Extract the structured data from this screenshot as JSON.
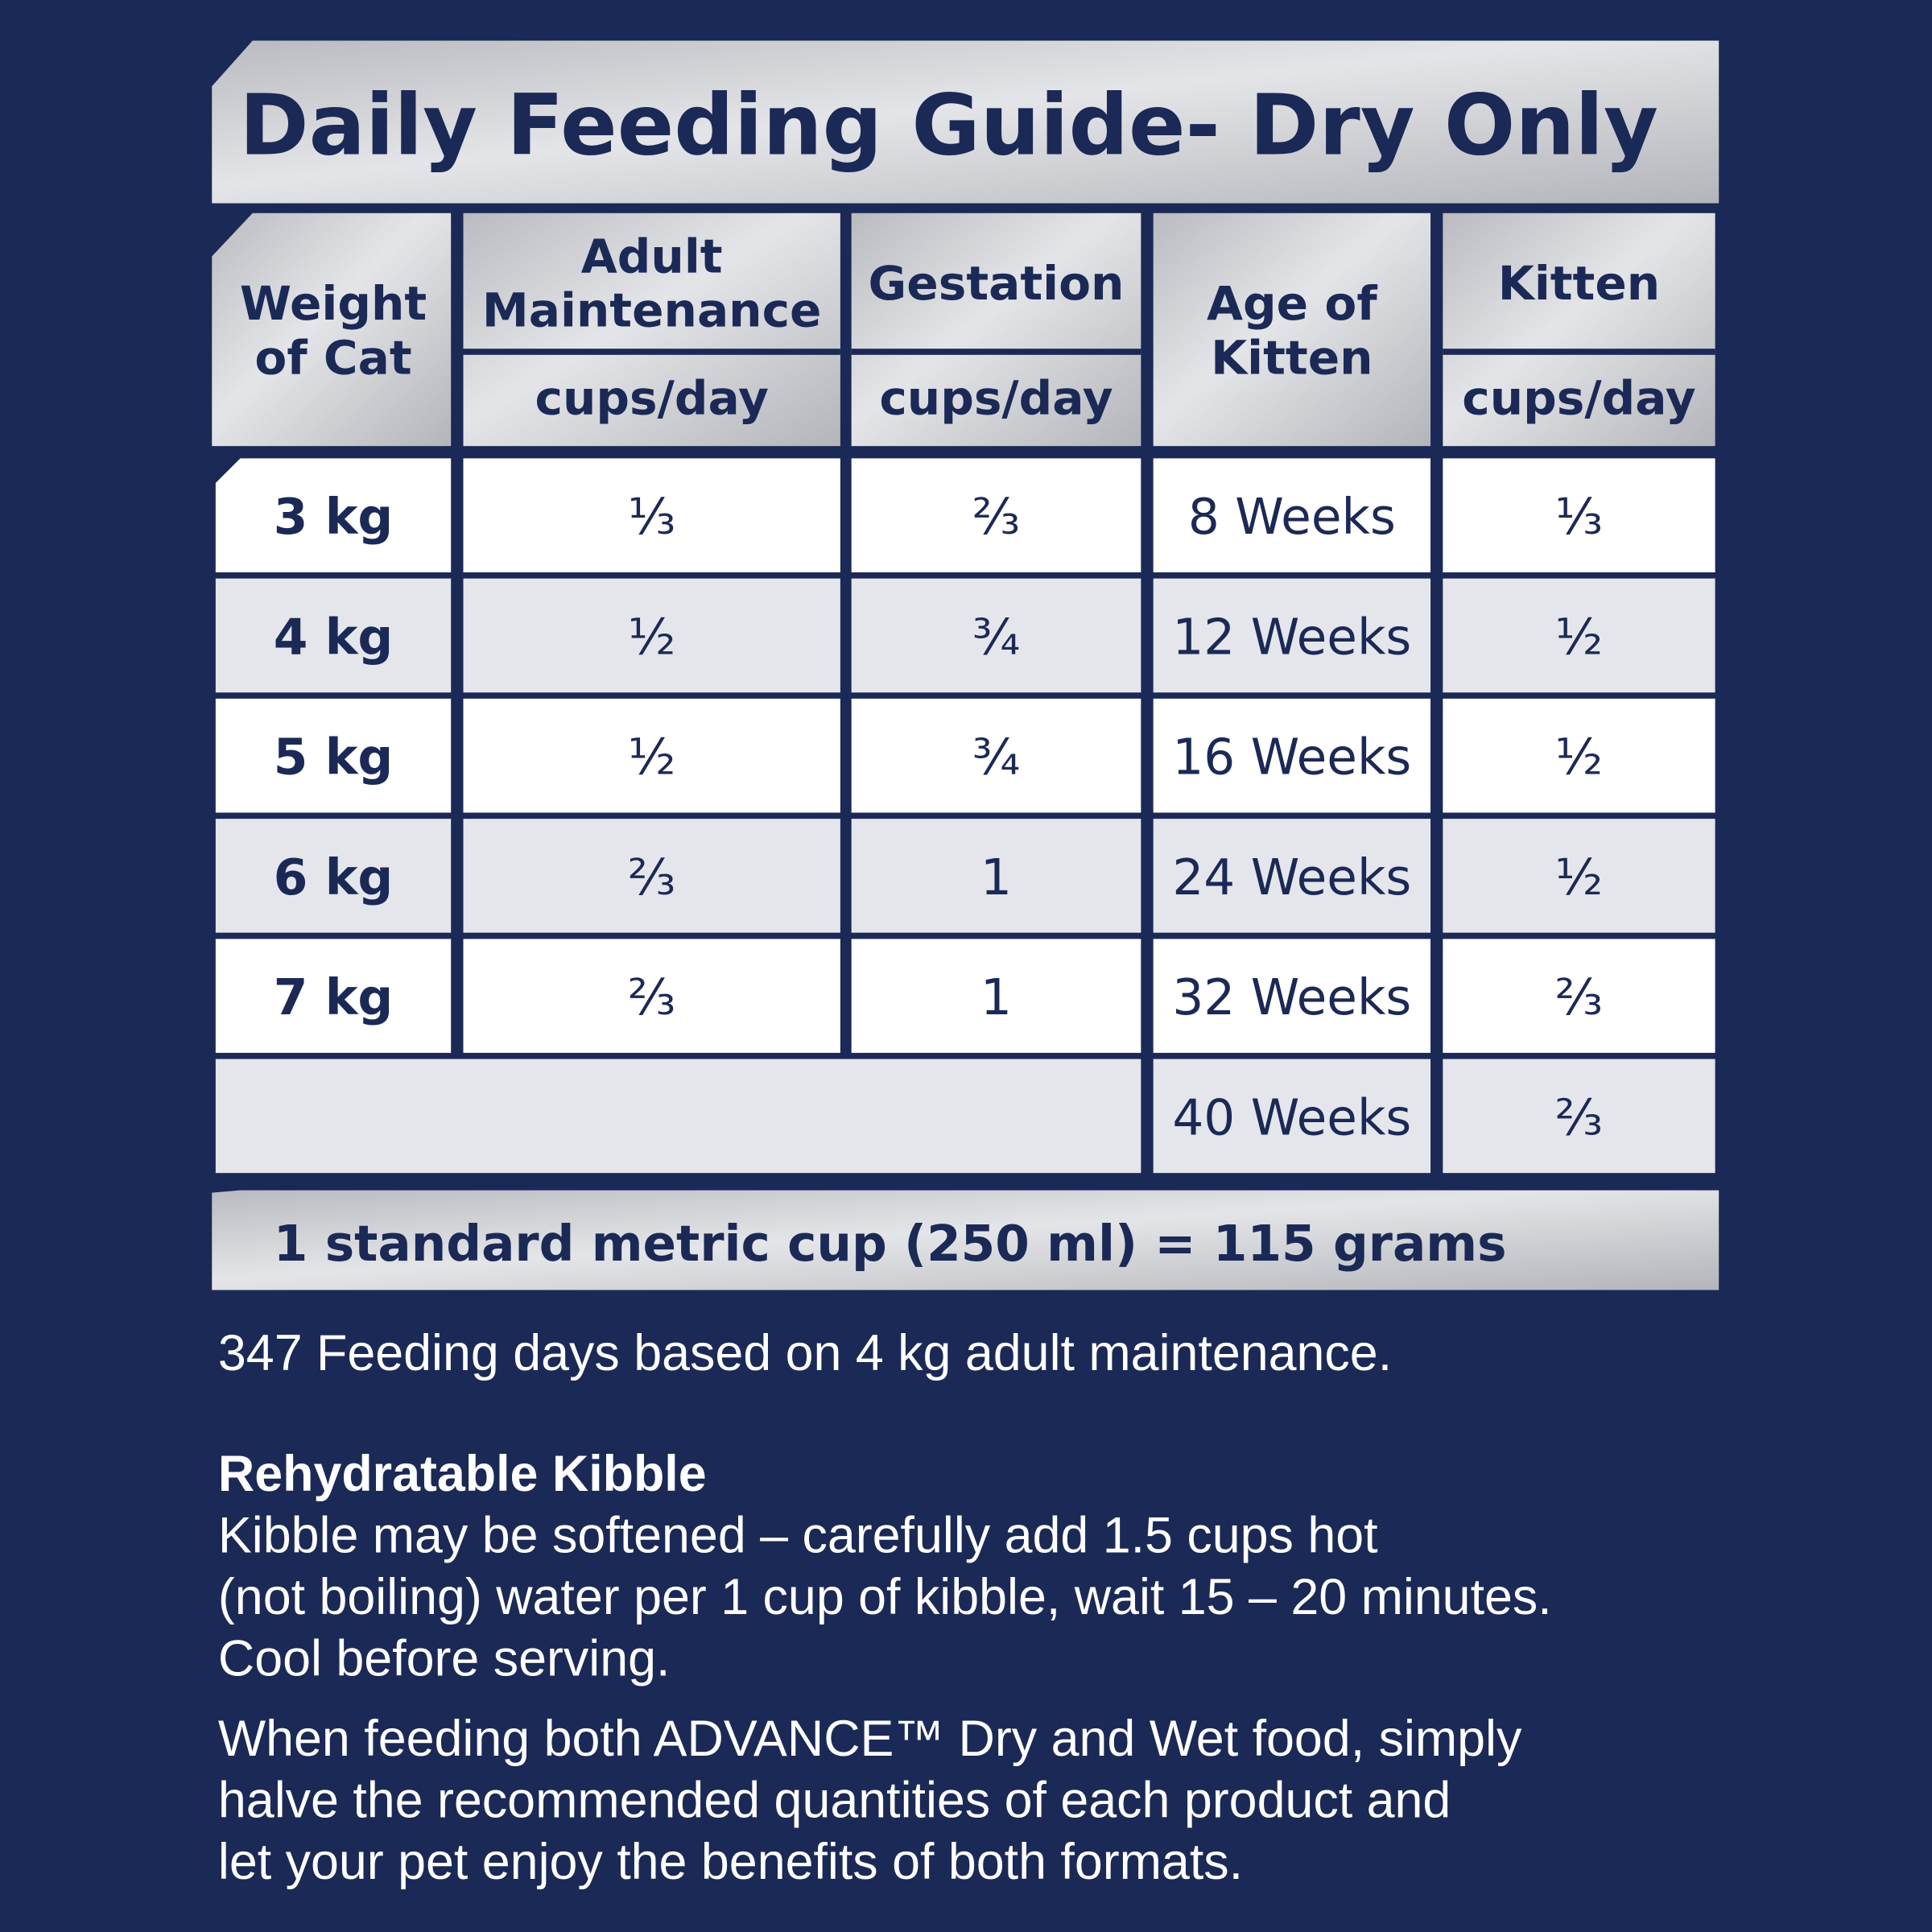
{
  "title": "Daily Feeding Guide- Dry Only",
  "table": {
    "headers": [
      [
        "Weight",
        "of Cat"
      ],
      [
        "Adult",
        "Maintenance"
      ],
      [
        "Gestation"
      ],
      [
        "Age of",
        "Kitten"
      ],
      [
        "Kitten"
      ]
    ],
    "units": [
      "cups/day",
      "cups/day",
      "cups/day"
    ],
    "rows": [
      [
        "3 kg",
        "⅓",
        "⅔",
        "8 Weeks",
        "⅓"
      ],
      [
        "4 kg",
        "½",
        "¾",
        "12 Weeks",
        "½"
      ],
      [
        "5 kg",
        "½",
        "¾",
        "16 Weeks",
        "½"
      ],
      [
        "6 kg",
        "⅔",
        "1",
        "24 Weeks",
        "½"
      ],
      [
        "7 kg",
        "⅔",
        "1",
        "32 Weeks",
        "⅔"
      ]
    ],
    "extra_rows": [
      [
        "40 Weeks",
        "⅔"
      ]
    ]
  },
  "conversion": "1 standard metric cup (250 ml) = 115 grams",
  "note": "347 Feeding days based on 4 kg adult maintenance.",
  "kibble": {
    "heading": "Rehydratable Kibble",
    "lines": [
      "Kibble may be softened – carefully add 1.5 cups hot",
      "(not boiling) water per 1 cup of kibble, wait 15 – 20 minutes.",
      "Cool before serving."
    ]
  },
  "combined": {
    "lines": [
      "When feeding both ADVANCE™ Dry and Wet food, simply",
      "halve the recommended quantities of each product and",
      "let your pet enjoy the benefits of both formats."
    ]
  }
}
